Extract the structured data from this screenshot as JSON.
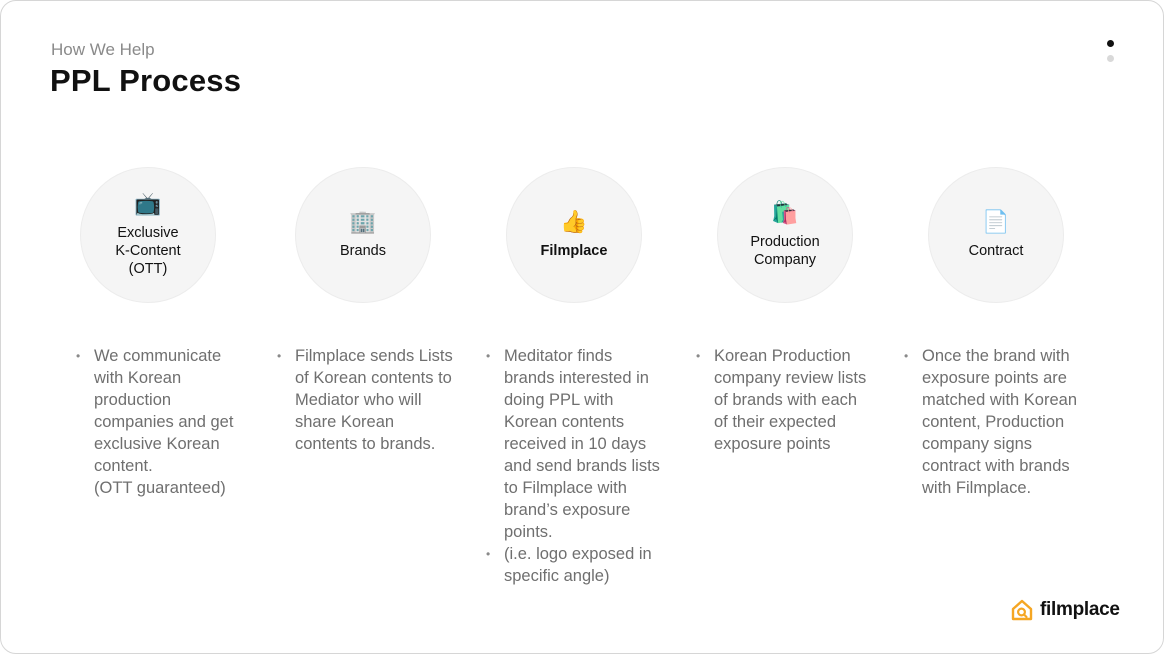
{
  "header": {
    "subtitle": "How We Help",
    "title": "PPL Process"
  },
  "pager": {
    "total": 2,
    "active_index": 0
  },
  "steps": [
    {
      "icon": "tv-icon",
      "emoji": "📺",
      "label": "Exclusive\nK-Content\n(OTT)",
      "bullets": [
        "We communicate\nwith Korean\nproduction\ncompanies and get\nexclusive Korean\ncontent.\n(OTT guaranteed)"
      ]
    },
    {
      "icon": "office-building-icon",
      "emoji": "🏢",
      "label": "Brands",
      "bullets": [
        "Filmplace sends Lists\nof Korean contents to\nMediator who will\nshare Korean\ncontents to brands."
      ]
    },
    {
      "icon": "thumbs-up-icon",
      "emoji": "👍",
      "label": "Filmplace",
      "bullets": [
        "Meditator finds\nbrands interested in\ndoing PPL with\nKorean contents\nreceived in 10 days\nand send brands lists\nto Filmplace with\nbrand’s exposure\npoints.",
        "(i.e. logo exposed in\nspecific angle)"
      ]
    },
    {
      "icon": "shopping-bags-icon",
      "emoji": "🛍️",
      "label": "Production\nCompany",
      "bullets": [
        "Korean Production\ncompany review lists\nof brands with each\nof their expected\nexposure points"
      ]
    },
    {
      "icon": "document-icon",
      "emoji": "📄",
      "label": "Contract",
      "bullets": [
        "Once the brand with\nexposure points are\nmatched with Korean\ncontent, Production\ncompany signs\ncontract with brands\nwith Filmplace."
      ]
    }
  ],
  "brand": {
    "name": "filmplace",
    "accent": "#F5A623"
  }
}
